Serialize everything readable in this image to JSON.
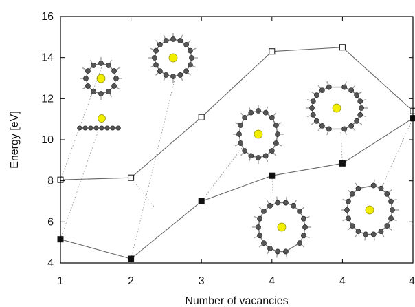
{
  "chart_data": {
    "type": "line",
    "xlabel": "Number of vacancies",
    "ylabel": "Energy [eV]",
    "x_tick_labels": [
      "1",
      "2",
      "3",
      "4",
      "4",
      "4"
    ],
    "x_positions": [
      1,
      2,
      3,
      4,
      5,
      6
    ],
    "ylim": [
      4,
      16
    ],
    "y_ticks": [
      4,
      6,
      8,
      10,
      12,
      14,
      16
    ],
    "grid": false,
    "series": [
      {
        "marker": "open-square",
        "color": "#555555",
        "values": [
          8.05,
          8.15,
          11.1,
          14.3,
          14.5,
          11.4
        ]
      },
      {
        "marker": "filled-square",
        "color": "#222222",
        "values": [
          5.15,
          4.2,
          7.0,
          8.25,
          8.85,
          11.05
        ]
      }
    ],
    "insets": [
      {
        "name": "1-vacancy top view",
        "colors": {
          "carbon": "#555555",
          "metal": "#f2ee00"
        }
      },
      {
        "name": "1-vacancy side view",
        "colors": {
          "carbon": "#555555",
          "metal": "#f2ee00"
        }
      },
      {
        "name": "2-vacancy",
        "colors": {
          "carbon": "#555555",
          "metal": "#f2ee00"
        }
      },
      {
        "name": "3-vacancy",
        "colors": {
          "carbon": "#555555",
          "metal": "#f2ee00"
        }
      },
      {
        "name": "4-vacancy A",
        "colors": {
          "carbon": "#555555",
          "metal": "#f2ee00"
        }
      },
      {
        "name": "4-vacancy B",
        "colors": {
          "carbon": "#555555",
          "metal": "#f2ee00"
        }
      },
      {
        "name": "4-vacancy C",
        "colors": {
          "carbon": "#555555",
          "metal": "#f2ee00"
        }
      }
    ]
  }
}
